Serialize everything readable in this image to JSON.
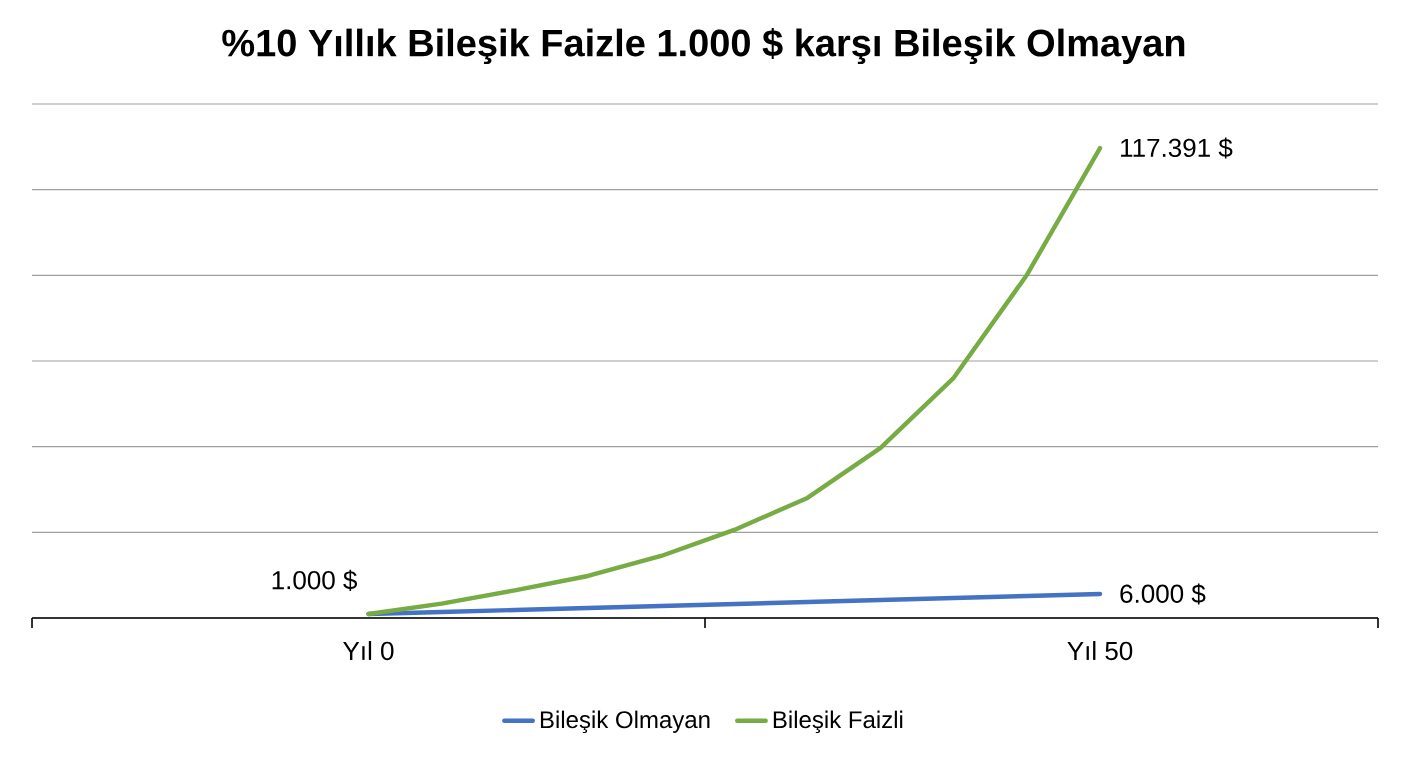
{
  "chart_data": {
    "type": "line",
    "title": "%10 Yıllık Bileşik Faizle 1.000 $ karşı Bileşik Olmayan",
    "categories": [
      "Yıl 0",
      null,
      null,
      null,
      null,
      null,
      null,
      null,
      null,
      null,
      "Yıl 50"
    ],
    "ylim": [
      0,
      128400
    ],
    "yticks": [
      {
        "value": 0,
        "label": null
      },
      {
        "value": 21400,
        "label": null
      },
      {
        "value": 42800,
        "label": null
      },
      {
        "value": 64200,
        "label": null
      },
      {
        "value": 85600,
        "label": null
      },
      {
        "value": 107000,
        "label": null
      },
      {
        "value": 128400,
        "label": null
      }
    ],
    "tick_labels": "x",
    "grid": "y",
    "legend": "bottom",
    "marker": "none",
    "line_style": "solid",
    "series": [
      {
        "name": "Bileşik Olmayan",
        "color": "#4472c4",
        "values": [
          1000,
          1500,
          2000,
          2500,
          3000,
          3500,
          4000,
          4500,
          5000,
          5500,
          6000
        ],
        "value_labels": [
          "1.000 $",
          null,
          null,
          null,
          null,
          null,
          null,
          null,
          null,
          null,
          "6.000 $"
        ]
      },
      {
        "name": "Bileşik Faizli",
        "color": "#77ab43",
        "values": [
          1000,
          3600,
          6900,
          10500,
          15500,
          22000,
          30000,
          42500,
          60000,
          85700,
          117391
        ],
        "value_labels": [
          null,
          null,
          null,
          null,
          null,
          null,
          null,
          null,
          null,
          null,
          "117.391 $"
        ]
      }
    ]
  }
}
